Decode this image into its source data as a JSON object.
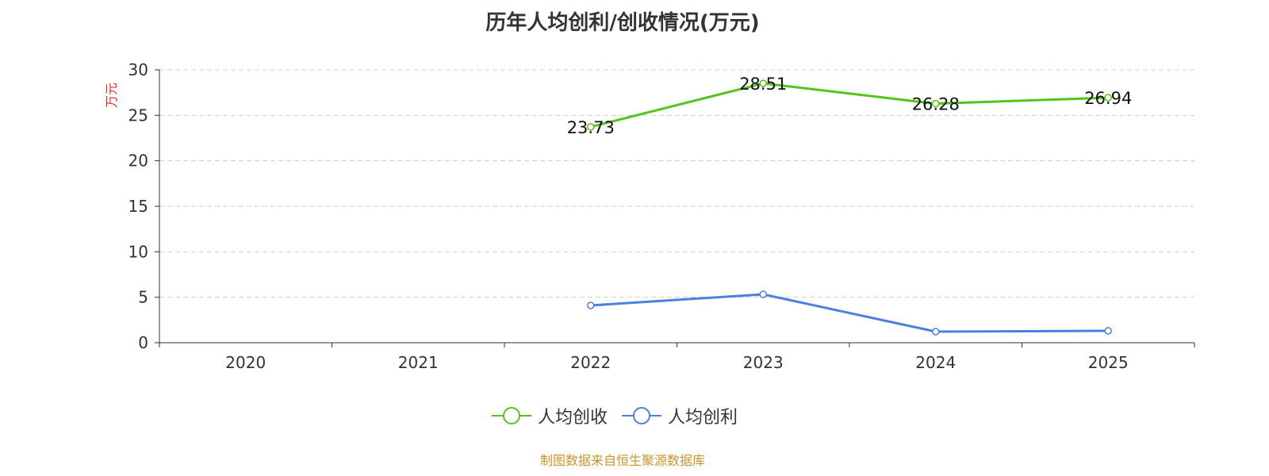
{
  "chart_data": {
    "type": "line",
    "title": "历年人均创利/创收情况(万元)",
    "ylabel": "万元",
    "xlabel": "",
    "ylim": [
      0,
      30
    ],
    "yticks": [
      0,
      5,
      10,
      15,
      20,
      25,
      30
    ],
    "categories": [
      "2020",
      "2021",
      "2022",
      "2023",
      "2024",
      "2025"
    ],
    "grid": true,
    "legend_position": "bottom-center",
    "series": [
      {
        "name": "人均创收",
        "color": "#52c41a",
        "values": [
          null,
          null,
          23.73,
          28.51,
          26.28,
          26.94
        ],
        "show_labels": true
      },
      {
        "name": "人均创利",
        "color": "#4a80e0",
        "values": [
          null,
          null,
          4.1,
          5.32,
          1.22,
          1.31
        ],
        "show_labels": false
      }
    ]
  },
  "source": "制图数据来自恒生聚源数据库"
}
